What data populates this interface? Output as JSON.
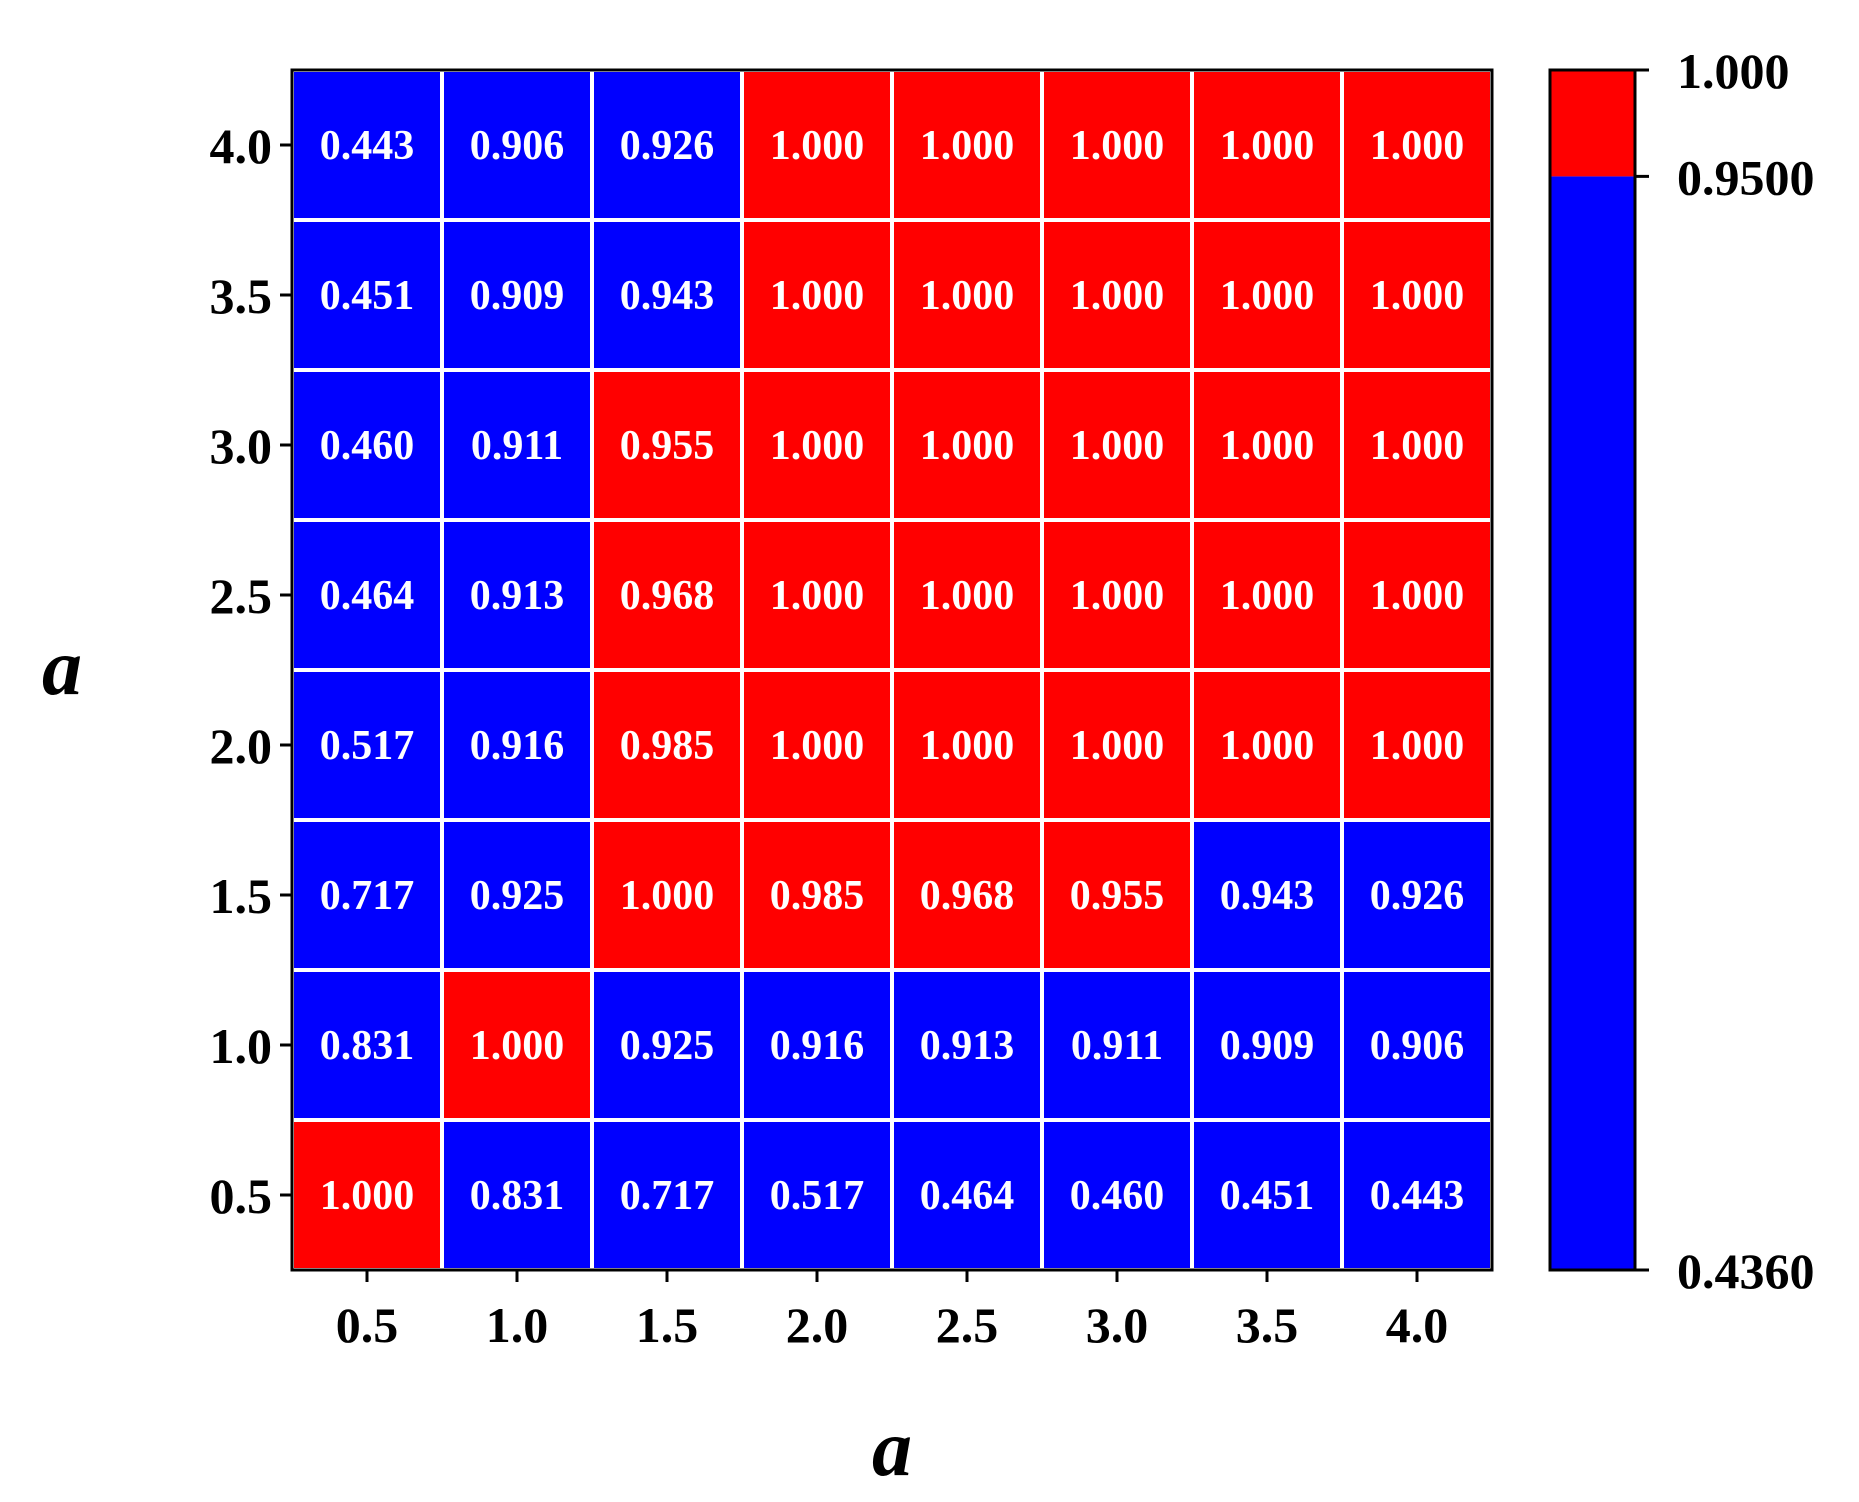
{
  "chart_data": {
    "type": "heatmap",
    "title": "",
    "xlabel": "a",
    "ylabel": "a",
    "x_categories": [
      "0.5",
      "1.0",
      "1.5",
      "2.0",
      "2.5",
      "3.0",
      "3.5",
      "4.0"
    ],
    "y_categories": [
      "0.5",
      "1.0",
      "1.5",
      "2.0",
      "2.5",
      "3.0",
      "3.5",
      "4.0"
    ],
    "values": [
      [
        1.0,
        0.831,
        0.717,
        0.517,
        0.464,
        0.46,
        0.451,
        0.443
      ],
      [
        0.831,
        1.0,
        0.925,
        0.916,
        0.913,
        0.911,
        0.909,
        0.906
      ],
      [
        0.717,
        0.925,
        1.0,
        0.985,
        0.968,
        0.955,
        0.943,
        0.926
      ],
      [
        0.517,
        0.916,
        0.985,
        1.0,
        1.0,
        1.0,
        1.0,
        1.0
      ],
      [
        0.464,
        0.913,
        0.968,
        1.0,
        1.0,
        1.0,
        1.0,
        1.0
      ],
      [
        0.46,
        0.911,
        0.955,
        1.0,
        1.0,
        1.0,
        1.0,
        1.0
      ],
      [
        0.451,
        0.909,
        0.943,
        1.0,
        1.0,
        1.0,
        1.0,
        1.0
      ],
      [
        0.443,
        0.906,
        0.926,
        1.0,
        1.0,
        1.0,
        1.0,
        1.0
      ]
    ],
    "value_labels": [
      [
        "1.000",
        "0.831",
        "0.717",
        "0.517",
        "0.464",
        "0.460",
        "0.451",
        "0.443"
      ],
      [
        "0.831",
        "1.000",
        "0.925",
        "0.916",
        "0.913",
        "0.911",
        "0.909",
        "0.906"
      ],
      [
        "0.717",
        "0.925",
        "1.000",
        "0.985",
        "0.968",
        "0.955",
        "0.943",
        "0.926"
      ],
      [
        "0.517",
        "0.916",
        "0.985",
        "1.000",
        "1.000",
        "1.000",
        "1.000",
        "1.000"
      ],
      [
        "0.464",
        "0.913",
        "0.968",
        "1.000",
        "1.000",
        "1.000",
        "1.000",
        "1.000"
      ],
      [
        "0.460",
        "0.911",
        "0.955",
        "1.000",
        "1.000",
        "1.000",
        "1.000",
        "1.000"
      ],
      [
        "0.451",
        "0.909",
        "0.943",
        "1.000",
        "1.000",
        "1.000",
        "1.000",
        "1.000"
      ],
      [
        "0.443",
        "0.906",
        "0.926",
        "1.000",
        "1.000",
        "1.000",
        "1.000",
        "1.000"
      ]
    ],
    "colorbar": {
      "min": 0.436,
      "threshold": 0.95,
      "max": 1.0,
      "tick_labels": [
        "0.4360",
        "0.9500",
        "1.000"
      ],
      "low_color": "#0000ff",
      "high_color": "#ff0000"
    },
    "cell_text_color": "#ffffff",
    "grid_line_color": "#ffffff"
  }
}
